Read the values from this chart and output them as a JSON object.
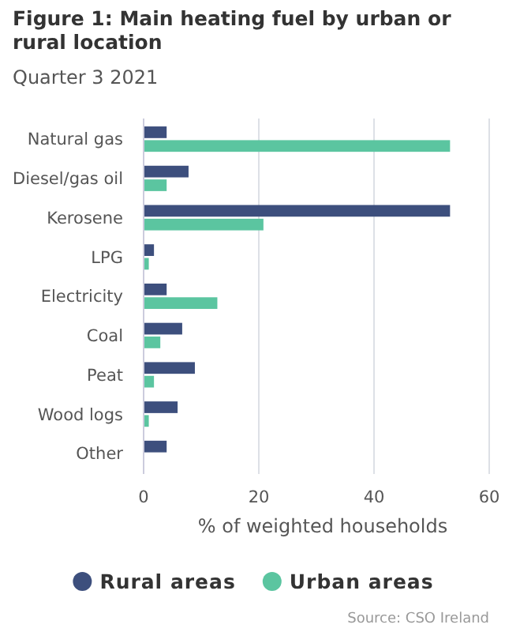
{
  "chart_data": {
    "type": "bar",
    "orientation": "horizontal",
    "title": "Figure 1: Main heating fuel by urban or rural location",
    "subtitle": "Quarter 3 2021",
    "categories": [
      "Natural gas",
      "Diesel/gas oil",
      "Kerosene",
      "LPG",
      "Electricity",
      "Coal",
      "Peat",
      "Wood logs",
      "Other"
    ],
    "series": [
      {
        "name": "Rural areas",
        "color": "#3d4f7d",
        "values": [
          4.0,
          7.8,
          53.2,
          1.8,
          4.0,
          6.7,
          8.9,
          5.9,
          4.0
        ]
      },
      {
        "name": "Urban areas",
        "color": "#5bc5a0",
        "values": [
          53.2,
          4.0,
          20.8,
          0.9,
          12.8,
          2.9,
          1.8,
          0.9,
          0
        ]
      }
    ],
    "xlabel": "% of weighted households",
    "xlim": [
      0,
      60
    ],
    "xticks": [
      0,
      20,
      40,
      60
    ],
    "grid": "x",
    "legend": "bottom",
    "annotations": [
      "Source: CSO Ireland"
    ]
  }
}
